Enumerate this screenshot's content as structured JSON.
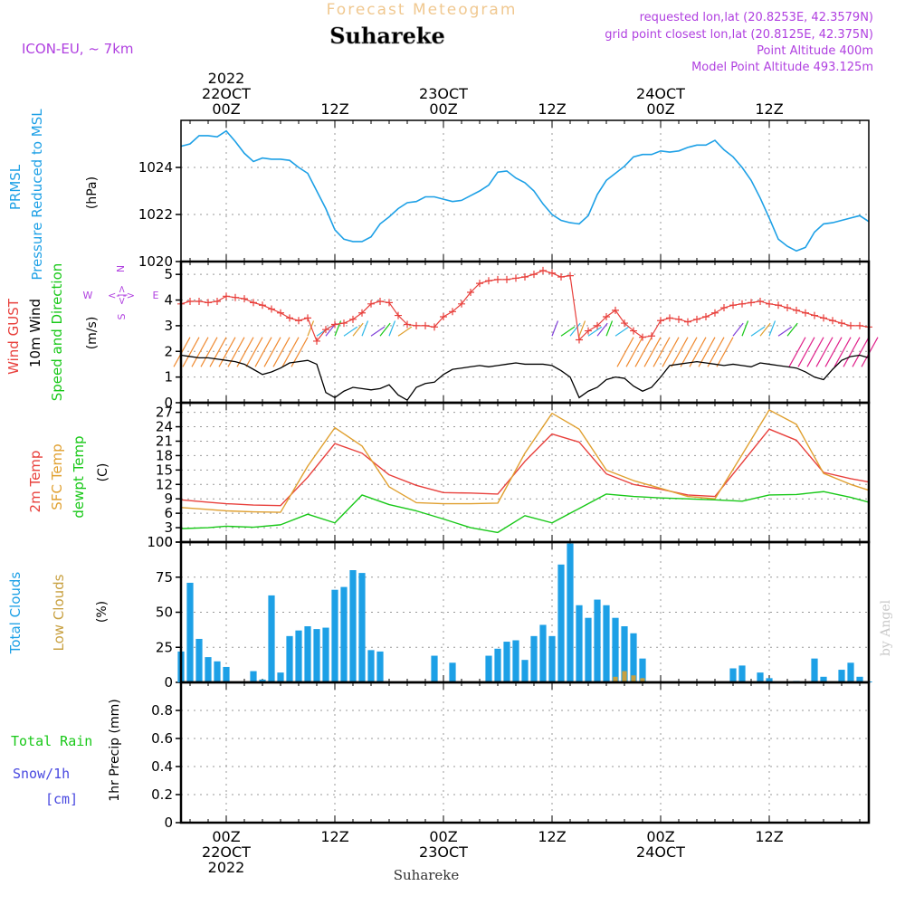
{
  "header": {
    "super_title": "Forecast Meteogram",
    "location": "Suhareke",
    "model": "ICON-EU, ~ 7km",
    "requested": "requested lon,lat (20.8253E, 42.3579N)",
    "grid_point": "grid point closest lon,lat (20.8125E, 42.375N)",
    "point_altitude": "Point Altitude 400m",
    "model_point_altitude": "Model Point Altitude 493.125m",
    "footer_location": "Suhareke",
    "credit": "by Angel"
  },
  "colors": {
    "pressure": "#1da0e6",
    "gust": "#e8403c",
    "wind": "#000000",
    "speed_dir": "#18c818",
    "temp": "#e8403c",
    "sfc_temp": "#e0a030",
    "dewpoint": "#18c818",
    "total_cloud": "#1da0e6",
    "low_cloud": "#c8a040",
    "rain": "#18c818",
    "snow": "#4848e0",
    "compass": "#b040e0",
    "title": "#f0c890",
    "info": "#b040e0"
  },
  "time_axis": {
    "top_labels": [
      {
        "hour": 0,
        "lines": [
          "2022",
          "22OCT",
          "00Z"
        ]
      },
      {
        "hour": 12,
        "lines": [
          "12Z"
        ]
      },
      {
        "hour": 24,
        "lines": [
          "23OCT",
          "00Z"
        ]
      },
      {
        "hour": 36,
        "lines": [
          "12Z"
        ]
      },
      {
        "hour": 48,
        "lines": [
          "24OCT",
          "00Z"
        ]
      },
      {
        "hour": 60,
        "lines": [
          "12Z"
        ]
      }
    ],
    "bottom_labels": [
      {
        "hour": 0,
        "lines": [
          "00Z",
          "22OCT",
          "2022"
        ]
      },
      {
        "hour": 12,
        "lines": [
          "12Z"
        ]
      },
      {
        "hour": 24,
        "lines": [
          "00Z",
          "23OCT"
        ]
      },
      {
        "hour": 36,
        "lines": [
          "12Z"
        ]
      },
      {
        "hour": 48,
        "lines": [
          "00Z",
          "24OCT"
        ]
      },
      {
        "hour": 60,
        "lines": [
          "12Z"
        ]
      }
    ],
    "hour_start": -5,
    "hour_end": 71
  },
  "chart_data": [
    {
      "type": "line",
      "title": "PRMSL Pressure Reduced to MSL",
      "ylabel": "(hPa)",
      "ylim": [
        1020,
        1026.0
      ],
      "yticks": [
        1020,
        1022,
        1024
      ],
      "x": [
        -5,
        -4,
        -3,
        -2,
        -1,
        0,
        1,
        2,
        3,
        4,
        5,
        6,
        7,
        8,
        9,
        10,
        11,
        12,
        13,
        14,
        15,
        16,
        17,
        18,
        19,
        20,
        21,
        22,
        23,
        24,
        25,
        26,
        27,
        28,
        29,
        30,
        31,
        32,
        33,
        34,
        35,
        36,
        37,
        38,
        39,
        40,
        41,
        42,
        43,
        44,
        45,
        46,
        47,
        48,
        49,
        50,
        51,
        52,
        53,
        54,
        55,
        56,
        57,
        58,
        59,
        60,
        61,
        62,
        63,
        64,
        65,
        66,
        67,
        68,
        69,
        70,
        71
      ],
      "series": [
        {
          "name": "PRMSL",
          "values": [
            1024.9,
            1025.0,
            1025.35,
            1025.35,
            1025.3,
            1025.55,
            1025.1,
            1024.6,
            1024.25,
            1024.4,
            1024.35,
            1024.35,
            1024.3,
            1024.0,
            1023.75,
            1023.0,
            1022.25,
            1021.35,
            1020.95,
            1020.85,
            1020.85,
            1021.05,
            1021.6,
            1021.9,
            1022.25,
            1022.5,
            1022.55,
            1022.75,
            1022.75,
            1022.65,
            1022.55,
            1022.6,
            1022.8,
            1023.0,
            1023.25,
            1023.8,
            1023.85,
            1023.55,
            1023.35,
            1023.0,
            1022.45,
            1022.0,
            1021.75,
            1021.65,
            1021.6,
            1021.95,
            1022.85,
            1023.45,
            1023.75,
            1024.05,
            1024.45,
            1024.55,
            1024.55,
            1024.7,
            1024.65,
            1024.7,
            1024.85,
            1024.95,
            1024.95,
            1025.15,
            1024.75,
            1024.45,
            1024.0,
            1023.45,
            1022.7,
            1021.85,
            1020.95,
            1020.65,
            1020.45,
            1020.6,
            1021.25,
            1021.6,
            1021.65,
            1021.75,
            1021.85,
            1021.95,
            1021.7
          ]
        }
      ]
    },
    {
      "type": "line",
      "title": "Wind GUST / 10m Wind Speed and Direction",
      "ylabel": "(m/s)",
      "ylim": [
        0,
        5.5
      ],
      "yticks": [
        0,
        1,
        2,
        3,
        4,
        5
      ],
      "compass_label": "W <- -> E, N, S",
      "series": [
        {
          "name": "Wind GUST",
          "markers": "plus",
          "values": [
            3.85,
            3.95,
            3.95,
            3.9,
            3.95,
            4.15,
            4.1,
            4.05,
            3.9,
            3.8,
            3.65,
            3.5,
            3.3,
            3.2,
            3.3,
            2.4,
            2.85,
            3.05,
            3.1,
            3.25,
            3.5,
            3.85,
            3.95,
            3.9,
            3.4,
            3.05,
            3.0,
            3.0,
            2.95,
            3.35,
            3.55,
            3.85,
            4.3,
            4.65,
            4.75,
            4.8,
            4.8,
            4.85,
            4.9,
            5.0,
            5.15,
            5.05,
            4.9,
            4.95,
            2.45,
            2.8,
            3.0,
            3.35,
            3.6,
            3.1,
            2.8,
            2.55,
            2.6,
            3.2,
            3.3,
            3.25,
            3.15,
            3.25,
            3.35,
            3.5,
            3.7,
            3.8,
            3.85,
            3.9,
            3.95,
            3.85,
            3.8,
            3.7,
            3.6,
            3.5,
            3.4,
            3.3,
            3.2,
            3.1,
            3.0,
            3.0,
            2.95
          ]
        },
        {
          "name": "10m Wind",
          "values": [
            1.85,
            1.8,
            1.75,
            1.75,
            1.7,
            1.65,
            1.6,
            1.5,
            1.3,
            1.1,
            1.2,
            1.35,
            1.55,
            1.6,
            1.65,
            1.5,
            0.4,
            0.2,
            0.45,
            0.6,
            0.55,
            0.5,
            0.55,
            0.7,
            0.3,
            0.1,
            0.6,
            0.75,
            0.8,
            1.1,
            1.3,
            1.35,
            1.4,
            1.45,
            1.4,
            1.45,
            1.5,
            1.55,
            1.5,
            1.5,
            1.5,
            1.45,
            1.25,
            1.0,
            0.2,
            0.45,
            0.6,
            0.9,
            1.0,
            0.95,
            0.65,
            0.45,
            0.6,
            1.0,
            1.45,
            1.5,
            1.55,
            1.6,
            1.55,
            1.5,
            1.45,
            1.5,
            1.45,
            1.4,
            1.55,
            1.5,
            1.45,
            1.4,
            1.35,
            1.2,
            1.0,
            0.9,
            1.3,
            1.65,
            1.8,
            1.85,
            1.75
          ]
        }
      ]
    },
    {
      "type": "line",
      "title": "2m Temp / SFC Temp / dewpt Temp",
      "ylabel": "(C)",
      "ylim": [
        0,
        29
      ],
      "yticks": [
        0,
        3,
        6,
        9,
        12,
        15,
        18,
        21,
        24,
        27
      ],
      "x": [
        -5,
        -2,
        0,
        3,
        6,
        9,
        12,
        15,
        18,
        21,
        24,
        27,
        30,
        33,
        36,
        39,
        42,
        45,
        48,
        51,
        54,
        57,
        60,
        63,
        66,
        69,
        71
      ],
      "series": [
        {
          "name": "2m Temp",
          "values": [
            8.8,
            8.3,
            8.0,
            7.7,
            7.6,
            13.5,
            20.5,
            18.5,
            14.0,
            11.8,
            10.3,
            10.2,
            10.0,
            16.8,
            22.5,
            20.8,
            14.2,
            12.0,
            11.0,
            9.8,
            9.5,
            16.5,
            23.5,
            21.2,
            14.5,
            13.2,
            12.5
          ]
        },
        {
          "name": "SFC Temp",
          "values": [
            7.2,
            6.8,
            6.5,
            6.3,
            6.2,
            15.8,
            23.8,
            20.0,
            11.5,
            8.2,
            8.0,
            8.0,
            8.1,
            18.5,
            26.8,
            23.5,
            15.0,
            12.8,
            11.2,
            9.5,
            9.0,
            18.2,
            27.5,
            24.5,
            14.3,
            12.0,
            10.8
          ]
        },
        {
          "name": "dewpt Temp",
          "values": [
            2.8,
            3.0,
            3.3,
            3.1,
            3.6,
            5.8,
            4.0,
            9.8,
            7.8,
            6.5,
            4.8,
            3.0,
            2.0,
            5.5,
            4.0,
            7.0,
            10.0,
            9.5,
            9.2,
            9.0,
            8.8,
            8.5,
            9.8,
            9.9,
            10.5,
            9.3,
            8.3
          ]
        }
      ]
    },
    {
      "type": "bar",
      "title": "Total Clouds / Low Clouds",
      "ylabel": "(%)",
      "ylim": [
        0,
        100
      ],
      "yticks": [
        0,
        25,
        50,
        75,
        100
      ],
      "x": [
        -5,
        -4,
        -3,
        -2,
        -1,
        0,
        1,
        2,
        3,
        4,
        5,
        6,
        7,
        8,
        9,
        10,
        11,
        12,
        13,
        14,
        15,
        16,
        17,
        18,
        19,
        20,
        21,
        22,
        23,
        24,
        25,
        26,
        27,
        28,
        29,
        30,
        31,
        32,
        33,
        34,
        35,
        36,
        37,
        38,
        39,
        40,
        41,
        42,
        43,
        44,
        45,
        46,
        47,
        48,
        49,
        50,
        51,
        52,
        53,
        54,
        55,
        56,
        57,
        58,
        59,
        60,
        61,
        62,
        63,
        64,
        65,
        66,
        67,
        68,
        69,
        70,
        71
      ],
      "series": [
        {
          "name": "Total Clouds",
          "values": [
            22,
            71,
            31,
            18,
            15,
            11,
            0,
            0,
            8,
            2,
            62,
            7,
            33,
            37,
            40,
            38,
            39,
            66,
            68,
            80,
            78,
            23,
            22,
            0,
            0,
            0,
            0,
            0,
            19,
            0,
            14,
            0,
            0,
            0,
            19,
            24,
            29,
            30,
            16,
            33,
            41,
            33,
            84,
            99,
            55,
            46,
            59,
            55,
            46,
            40,
            35,
            17,
            0,
            0,
            0,
            0,
            0,
            0,
            0,
            0,
            0,
            10,
            12,
            0,
            7,
            3,
            0,
            0,
            1,
            0,
            17,
            4,
            0,
            9,
            14,
            4,
            0
          ]
        },
        {
          "name": "Low Clouds",
          "values": [
            0,
            0,
            0,
            0,
            0,
            0,
            0,
            0,
            0,
            0,
            0,
            0,
            0,
            0,
            0,
            0,
            0,
            0,
            0,
            0,
            0,
            0,
            0,
            0,
            0,
            0,
            0,
            0,
            0,
            0,
            0,
            0,
            0,
            0,
            0,
            0,
            0,
            0,
            0,
            0,
            0,
            0,
            0,
            0,
            0,
            0,
            0,
            0,
            4,
            8,
            5,
            3,
            0,
            0,
            0,
            0,
            0,
            0,
            0,
            0,
            0,
            0,
            0,
            0,
            0,
            0,
            0,
            0,
            0,
            0,
            0,
            0,
            0,
            0,
            0,
            0,
            0
          ]
        }
      ]
    },
    {
      "type": "bar",
      "title": "Total Rain / Snow/1h",
      "ylabel": "1hr Precip (mm)",
      "ylim": [
        0,
        1.0
      ],
      "yticks": [
        0,
        0.2,
        0.4,
        0.6,
        0.8
      ],
      "series": [
        {
          "name": "Total Rain",
          "values": []
        },
        {
          "name": "Snow/1h [cm]",
          "values": []
        }
      ]
    }
  ],
  "panel_labels": {
    "pressure": {
      "line1": "PRMSL",
      "line2": "Pressure Reduced to MSL",
      "unit": "(hPa)"
    },
    "wind": {
      "gust": "Wind GUST",
      "wind10": "10m Wind",
      "speed": "Speed and Direction",
      "unit": "(m/s)"
    },
    "compass": {
      "west": "W",
      "east": "E",
      "north": "N",
      "south": "S",
      "arrow_h": "<- ->",
      "arrow_v": "<|>"
    },
    "temp": {
      "t2m": "2m Temp",
      "sfc": "SFC Temp",
      "dew": "dewpt Temp",
      "unit": "(C)"
    },
    "cloud": {
      "total": "Total Clouds",
      "low": "Low Clouds",
      "unit": "(%)"
    },
    "precip": {
      "rain": "Total Rain",
      "snow": "Snow/1h",
      "snow_unit": "[cm]",
      "unit": "1hr Precip (mm)"
    }
  }
}
